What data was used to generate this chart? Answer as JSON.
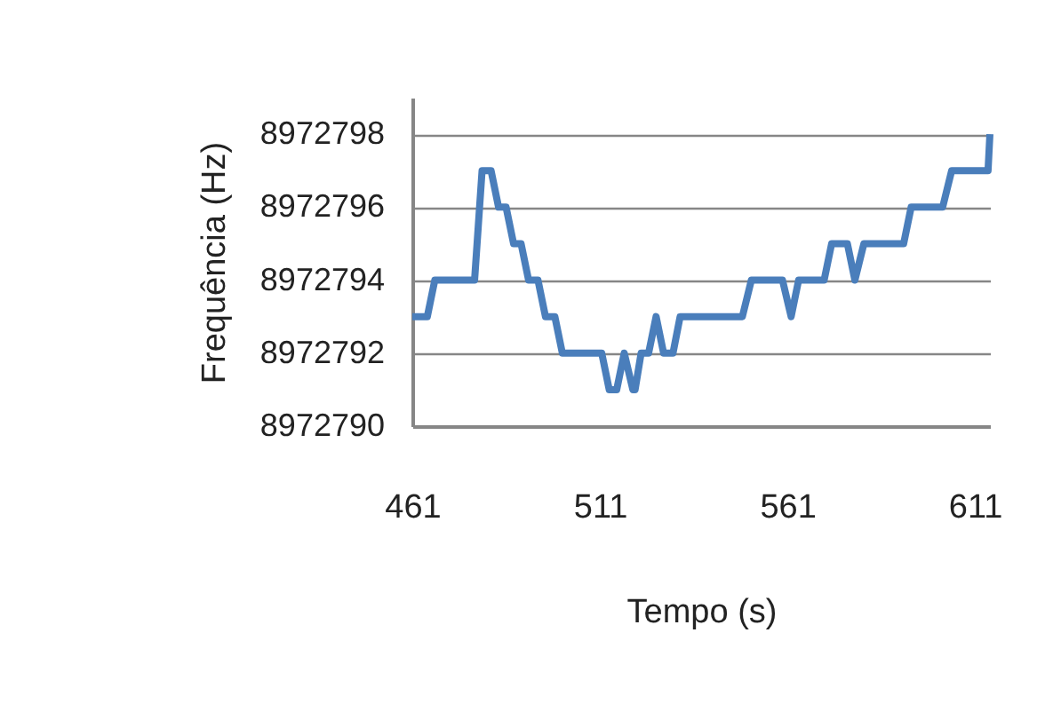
{
  "chart_data": {
    "type": "line",
    "xlabel": "Tempo (s)",
    "ylabel": "Frequência (Hz)",
    "x": [
      461,
      465,
      467,
      477.6,
      479.6,
      482,
      484,
      486,
      488,
      490,
      492,
      494.5,
      496.5,
      499,
      501,
      511.5,
      513.5,
      515.5,
      517.5,
      519.8,
      520.4,
      522,
      524,
      526,
      528,
      530.5,
      532.4,
      549,
      551.4,
      559.7,
      562,
      564,
      570.8,
      572.8,
      577,
      579,
      581.4,
      592,
      594,
      602.4,
      604.8,
      614.5,
      615
    ],
    "series": [
      {
        "color": "#4a7ebb",
        "values": [
          8972793,
          8972793,
          8972794,
          8972794,
          8972797,
          8972797,
          8972796,
          8972796,
          8972795,
          8972795,
          8972794,
          8972794,
          8972793,
          8972793,
          8972792,
          8972792,
          8972791,
          8972791,
          8972792,
          8972791,
          8972791,
          8972792,
          8972792,
          8972793,
          8972792,
          8972792,
          8972793,
          8972793,
          8972794,
          8972794,
          8972793,
          8972794,
          8972794,
          8972795,
          8972795,
          8972794,
          8972795,
          8972795,
          8972796,
          8972796,
          8972797,
          8972797,
          8972798
        ]
      }
    ],
    "xlim": [
      461,
      615
    ],
    "xticks": [
      461,
      511,
      561,
      611
    ],
    "ylim": [
      8972790,
      8972799
    ],
    "yticks": [
      8972790,
      8972792,
      8972794,
      8972796,
      8972798
    ],
    "grid": "y",
    "legend": false,
    "marker": "none",
    "line_style": "solid"
  }
}
